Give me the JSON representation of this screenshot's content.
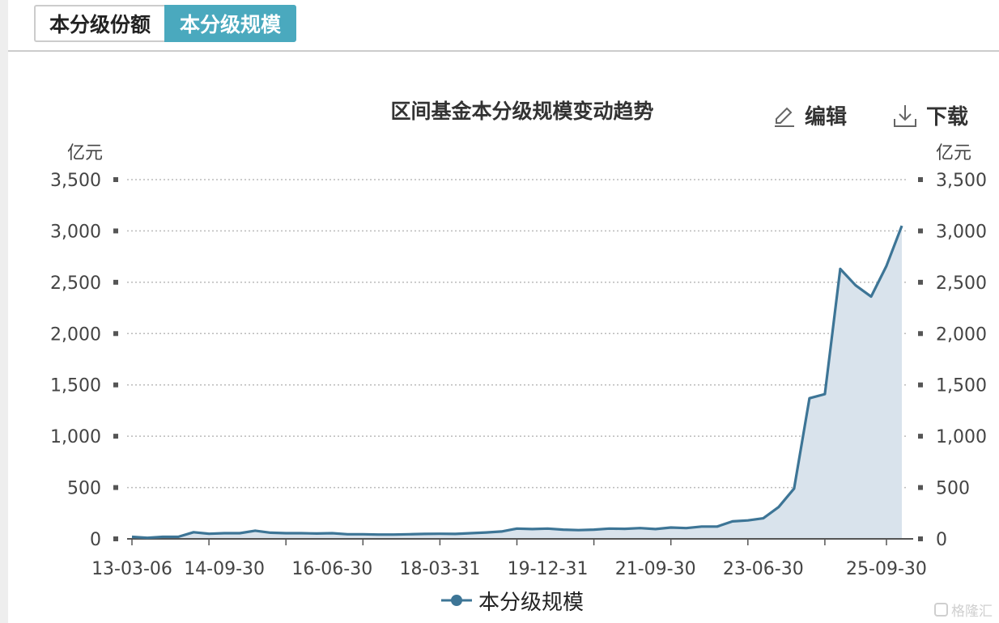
{
  "tabs": [
    {
      "label": "本分级份额",
      "active": false
    },
    {
      "label": "本分级规模",
      "active": true
    }
  ],
  "toolbar": {
    "edit_label": "编辑",
    "download_label": "下载"
  },
  "watermark": "格隆汇",
  "colors": {
    "accent": "#4aa9be",
    "line": "#3d7596",
    "area": "#d9e3ec",
    "grid": "#bbbbbb"
  },
  "chart_data": {
    "type": "area",
    "title": "区间基金本分级规模变动趋势",
    "ylabel_left": "亿元",
    "ylabel_right": "亿元",
    "ylim": [
      0,
      3500
    ],
    "yticks": [
      "0",
      "500",
      "1,000",
      "1,500",
      "2,000",
      "2,500",
      "3,000",
      "3,500"
    ],
    "ytick_values": [
      0,
      500,
      1000,
      1500,
      2000,
      2500,
      3000,
      3500
    ],
    "x_tick_labels": [
      "13-03-06",
      "14-09-30",
      "16-06-30",
      "18-03-31",
      "19-12-31",
      "21-09-30",
      "23-06-30",
      "25-09-30"
    ],
    "x_tick_positions": [
      0,
      6,
      13,
      20,
      27,
      34,
      41,
      49
    ],
    "x_minor_ticks": [
      0,
      5,
      10,
      15,
      20,
      25,
      30,
      35,
      40,
      45,
      49
    ],
    "grid": true,
    "legend_position": "bottom",
    "series": [
      {
        "name": "本分级规模",
        "values": [
          20,
          10,
          20,
          20,
          65,
          50,
          55,
          55,
          80,
          60,
          55,
          55,
          52,
          55,
          45,
          45,
          42,
          42,
          45,
          48,
          50,
          48,
          55,
          62,
          72,
          100,
          95,
          100,
          90,
          85,
          90,
          100,
          98,
          105,
          95,
          110,
          105,
          120,
          120,
          170,
          180,
          200,
          310,
          490,
          1370,
          1410,
          2630,
          2470,
          2360,
          2660,
          3050
        ]
      }
    ]
  }
}
